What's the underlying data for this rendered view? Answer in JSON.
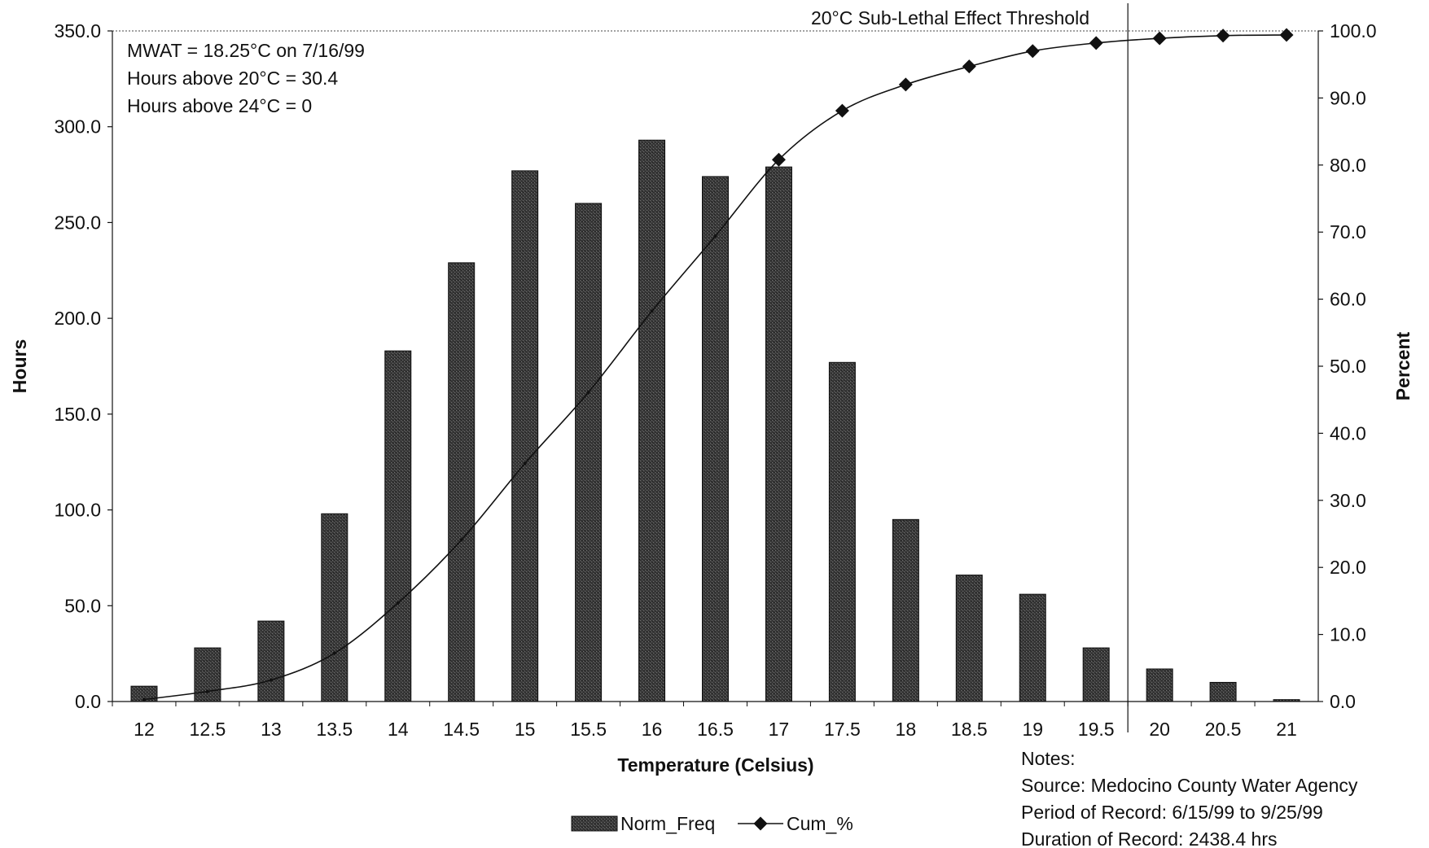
{
  "chart_data": {
    "type": "bar",
    "categories": [
      "12",
      "12.5",
      "13",
      "13.5",
      "14",
      "14.5",
      "15",
      "15.5",
      "16",
      "16.5",
      "17",
      "17.5",
      "18",
      "18.5",
      "19",
      "19.5",
      "20",
      "20.5",
      "21"
    ],
    "series": [
      {
        "name": "Norm_Freq",
        "type": "bar",
        "axis": "left",
        "values": [
          8,
          28,
          42,
          98,
          183,
          229,
          277,
          260,
          293,
          274,
          279,
          177,
          95,
          66,
          56,
          28,
          17,
          10,
          1
        ]
      },
      {
        "name": "Cum_%",
        "type": "line",
        "axis": "right",
        "values": [
          0.3,
          1.5,
          3.2,
          7.2,
          14.7,
          24.1,
          35.5,
          46.1,
          58.2,
          69.4,
          80.8,
          88.1,
          92.0,
          94.7,
          97.0,
          98.2,
          98.9,
          99.3,
          99.4
        ]
      }
    ],
    "xlabel": "Temperature (Celsius)",
    "ylabel": "Hours",
    "y2label": "Percent",
    "ylim": [
      0,
      350
    ],
    "y2lim": [
      0,
      100
    ],
    "yticks": [
      "0.0",
      "50.0",
      "100.0",
      "150.0",
      "200.0",
      "250.0",
      "300.0",
      "350.0"
    ],
    "y2ticks": [
      "0.0",
      "10.0",
      "20.0",
      "30.0",
      "40.0",
      "50.0",
      "60.0",
      "70.0",
      "80.0",
      "90.0",
      "100.0"
    ],
    "threshold": {
      "x": 19.75,
      "label": "20°C Sub-Lethal Effect Threshold"
    },
    "stats": [
      "MWAT = 18.25°C on 7/16/99",
      "Hours above 20°C = 30.4",
      "Hours above 24°C = 0"
    ],
    "notes": [
      "Notes:",
      "Source: Medocino County Water Agency",
      "Period of Record: 6/15/99 to 9/25/99",
      "Duration of Record: 2438.4 hrs"
    ],
    "legend_position": "bottom-center",
    "grid": false,
    "colors": {
      "bar": "#3c3c3c",
      "bar_edge": "#111111",
      "line": "#111111"
    }
  }
}
